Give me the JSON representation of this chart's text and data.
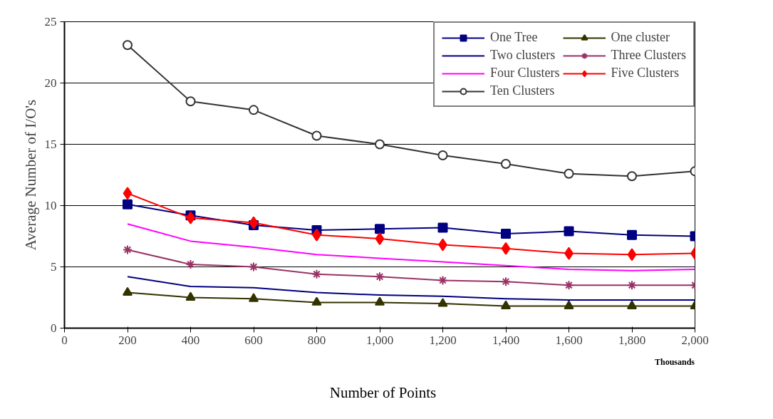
{
  "chart_data": {
    "type": "line",
    "xlabel": "Number of Points",
    "ylabel": "Average Number of I/O's",
    "annotations": [
      "Thousands"
    ],
    "x": [
      200,
      400,
      600,
      800,
      1000,
      1200,
      1400,
      1600,
      1800,
      2000
    ],
    "xlim": [
      0,
      2000
    ],
    "xticks": [
      0,
      200,
      400,
      600,
      800,
      {
        "value": 1000,
        "label": "1,000"
      },
      {
        "value": 1200,
        "label": "1,200"
      },
      {
        "value": 1400,
        "label": "1,400"
      },
      {
        "value": 1600,
        "label": "1,600"
      },
      {
        "value": 1800,
        "label": "1,800"
      },
      {
        "value": 2000,
        "label": "2,000"
      }
    ],
    "ylim": [
      0,
      25
    ],
    "yticks": [
      0,
      5,
      10,
      15,
      20,
      25
    ],
    "grid": "y",
    "legend": "top right",
    "line_style": "solid",
    "series": [
      {
        "name": "One Tree",
        "color": "#000080",
        "marker": "square",
        "values": [
          10.1,
          9.2,
          8.4,
          8.0,
          8.1,
          8.2,
          7.7,
          7.9,
          7.6,
          7.5
        ]
      },
      {
        "name": "One cluster",
        "color": "#333300",
        "marker": "triangle",
        "values": [
          2.9,
          2.5,
          2.4,
          2.1,
          2.1,
          2.0,
          1.8,
          1.8,
          1.8,
          1.8
        ]
      },
      {
        "name": "Two clusters",
        "color": "#000080",
        "marker": "none",
        "values": [
          4.2,
          3.4,
          3.3,
          2.9,
          2.7,
          2.6,
          2.4,
          2.3,
          2.3,
          2.3
        ]
      },
      {
        "name": "Three Clusters",
        "color": "#993366",
        "marker": "cross",
        "values": [
          6.4,
          5.2,
          5.0,
          4.4,
          4.2,
          3.9,
          3.8,
          3.5,
          3.5,
          3.5
        ]
      },
      {
        "name": "Four Clusters",
        "color": "#ff00ff",
        "marker": "none",
        "values": [
          8.5,
          7.1,
          6.6,
          6.0,
          5.7,
          5.4,
          5.1,
          4.8,
          4.7,
          4.8
        ]
      },
      {
        "name": "Five Clusters",
        "color": "#ff0000",
        "marker": "diamond",
        "values": [
          11.0,
          9.0,
          8.6,
          7.6,
          7.3,
          6.8,
          6.5,
          6.1,
          6.0,
          6.1
        ]
      },
      {
        "name": "Ten Clusters",
        "color": "#333333",
        "marker": "circle",
        "values": [
          23.1,
          18.5,
          17.8,
          15.7,
          15.0,
          14.1,
          13.4,
          12.6,
          12.4,
          12.8
        ]
      }
    ]
  }
}
